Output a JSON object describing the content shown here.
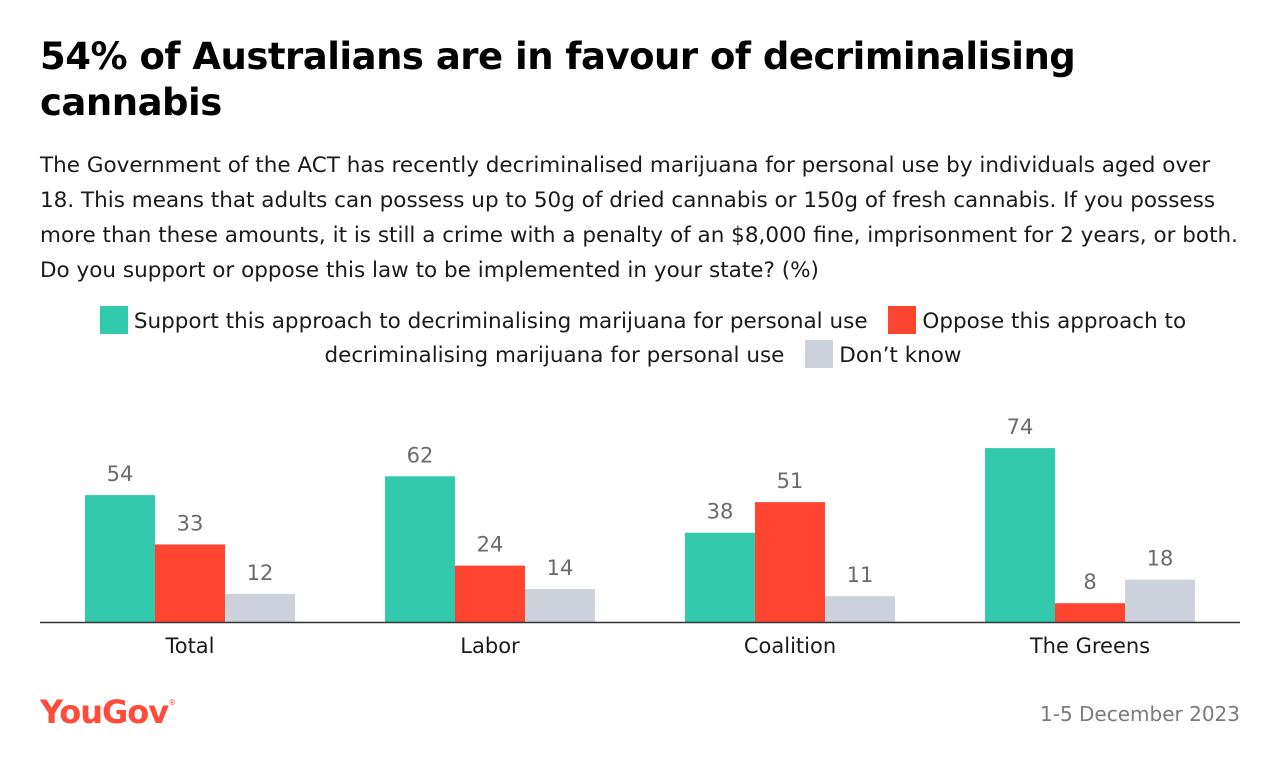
{
  "header": {
    "title": "54% of Australians are in favour of decriminalising cannabis",
    "subtitle": "The Government of the ACT has recently decriminalised marijuana for personal use by individuals aged over 18. This means that adults can possess up to 50g of dried cannabis or 150g of fresh cannabis. If you possess more than these amounts, it is still a crime with a penalty of an $8,000 fine, imprisonment for 2 years, or both. Do you support or oppose this law to be implemented in your state? (%)"
  },
  "footer": {
    "logo": "YouGov",
    "date": "1-5 December 2023"
  },
  "chart_data": {
    "type": "bar",
    "categories": [
      "Total",
      "Labor",
      "Coalition",
      "The Greens"
    ],
    "series": [
      {
        "name": "Support this approach to decriminalising marijuana for personal use",
        "color": "#33c9ac",
        "values": [
          54,
          62,
          38,
          74
        ]
      },
      {
        "name": "Oppose this approach to decriminalising marijuana for personal use",
        "color": "#ff4530",
        "values": [
          33,
          24,
          51,
          8
        ]
      },
      {
        "name": "Don’t know",
        "color": "#ccd1db",
        "values": [
          12,
          14,
          11,
          18
        ]
      }
    ],
    "ylim": [
      0,
      100
    ],
    "legend_position": "top",
    "grid": false
  }
}
